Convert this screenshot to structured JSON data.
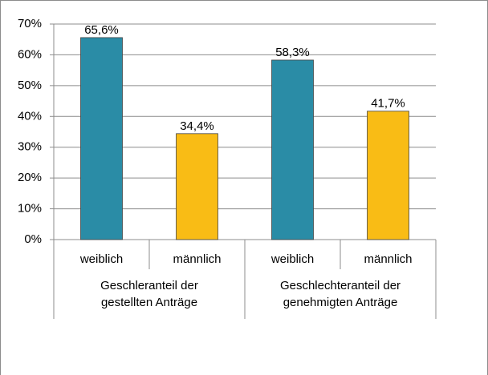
{
  "chart_data": {
    "type": "bar",
    "categories": [
      "weiblich",
      "männlich",
      "weiblich",
      "männlich"
    ],
    "groups": [
      {
        "lines": [
          "Geschleranteil der",
          "gestellten Anträge"
        ],
        "size": 2
      },
      {
        "lines": [
          "Geschlechteranteil der",
          "genehmigten Anträge"
        ],
        "size": 2
      }
    ],
    "values": [
      65.6,
      34.4,
      58.3,
      41.7
    ],
    "value_labels": [
      "65,6%",
      "34,4%",
      "58,3%",
      "41,7%"
    ],
    "colors": [
      "#2a8ca6",
      "#f9bc15",
      "#2a8ca6",
      "#f9bc15"
    ],
    "ylim": [
      0,
      70
    ],
    "yticks": [
      {
        "value": 0,
        "label": "0%"
      },
      {
        "value": 10,
        "label": "10%"
      },
      {
        "value": 20,
        "label": "20%"
      },
      {
        "value": 30,
        "label": "30%"
      },
      {
        "value": 40,
        "label": "40%"
      },
      {
        "value": 50,
        "label": "50%"
      },
      {
        "value": 60,
        "label": "60%"
      },
      {
        "value": 70,
        "label": "70%"
      }
    ],
    "grid": true
  }
}
